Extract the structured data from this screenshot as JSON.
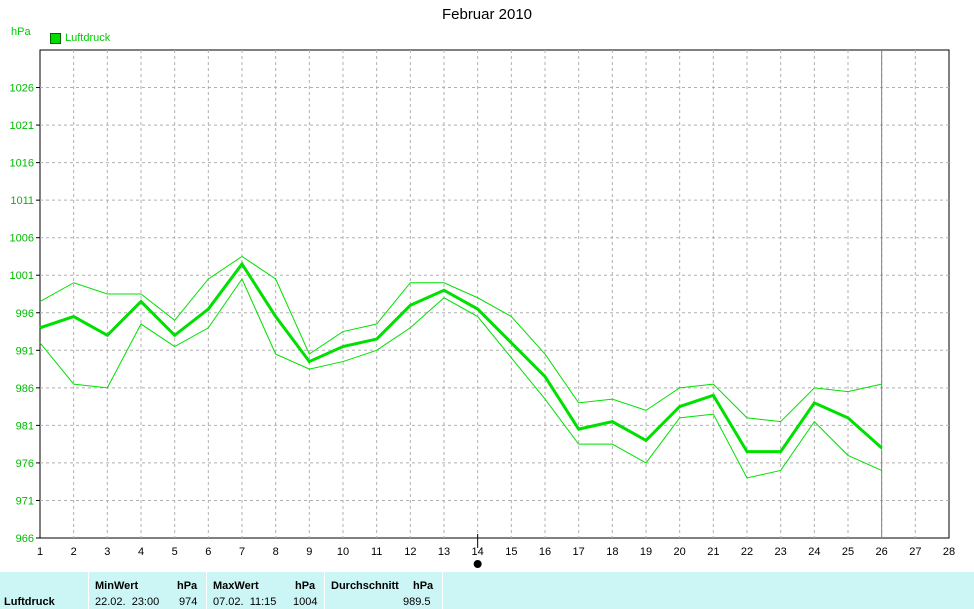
{
  "chart_data": {
    "type": "line",
    "title": "Februar 2010",
    "ylabel": "hPa",
    "legend": [
      "Luftdruck"
    ],
    "x": [
      1,
      2,
      3,
      4,
      5,
      6,
      7,
      8,
      9,
      10,
      11,
      12,
      13,
      14,
      15,
      16,
      17,
      18,
      19,
      20,
      21,
      22,
      23,
      24,
      25,
      26
    ],
    "x_ticks": [
      1,
      2,
      3,
      4,
      5,
      6,
      7,
      8,
      9,
      10,
      11,
      12,
      13,
      14,
      15,
      16,
      17,
      18,
      19,
      20,
      21,
      22,
      23,
      24,
      25,
      26,
      27,
      28
    ],
    "xlim": [
      1,
      28
    ],
    "y_ticks": [
      966,
      971,
      976,
      981,
      986,
      991,
      996,
      1001,
      1006,
      1011,
      1016,
      1021,
      1026
    ],
    "ylim": [
      966,
      1031
    ],
    "grid": true,
    "series": [
      {
        "name": "Luftdruck",
        "role": "mean",
        "values": [
          994,
          995.5,
          993,
          997.5,
          993,
          996.5,
          1002.5,
          995.5,
          989.5,
          991.5,
          992.5,
          997,
          999,
          996.5,
          992,
          987.5,
          980.5,
          981.5,
          979,
          983.5,
          985,
          977.5,
          977.5,
          984,
          982,
          978
        ]
      },
      {
        "role": "max",
        "values": [
          997.5,
          1000,
          998.5,
          998.5,
          995,
          1000.5,
          1003.5,
          1000.5,
          990.5,
          993.5,
          994.5,
          1000,
          1000,
          998,
          995.5,
          990.5,
          984,
          984.5,
          983,
          986,
          986.5,
          982,
          981.5,
          986,
          985.5,
          986.5
        ]
      },
      {
        "role": "min",
        "values": [
          992,
          986.5,
          986,
          994.5,
          991.5,
          994,
          1000.5,
          990.5,
          988.5,
          989.5,
          991,
          994,
          998,
          995.5,
          990,
          984.5,
          978.5,
          978.5,
          976,
          982,
          982.5,
          974,
          975,
          981.5,
          977,
          975
        ]
      }
    ],
    "marker_x": 14,
    "colors": {
      "line": "#00e000",
      "grid": "#b0b0b0",
      "background": "#ffffff",
      "current_day_line": "#808080"
    }
  },
  "summary": {
    "name": "Luftdruck",
    "min_label": "MinWert",
    "min_unit": "hPa",
    "min_time": "22.02.  23:00",
    "min_value": "974",
    "max_label": "MaxWert",
    "max_unit": "hPa",
    "max_time": "07.02.  11:15",
    "max_value": "1004",
    "avg_label": "Durchschnitt",
    "avg_unit": "hPa",
    "avg_value": "989.5"
  }
}
